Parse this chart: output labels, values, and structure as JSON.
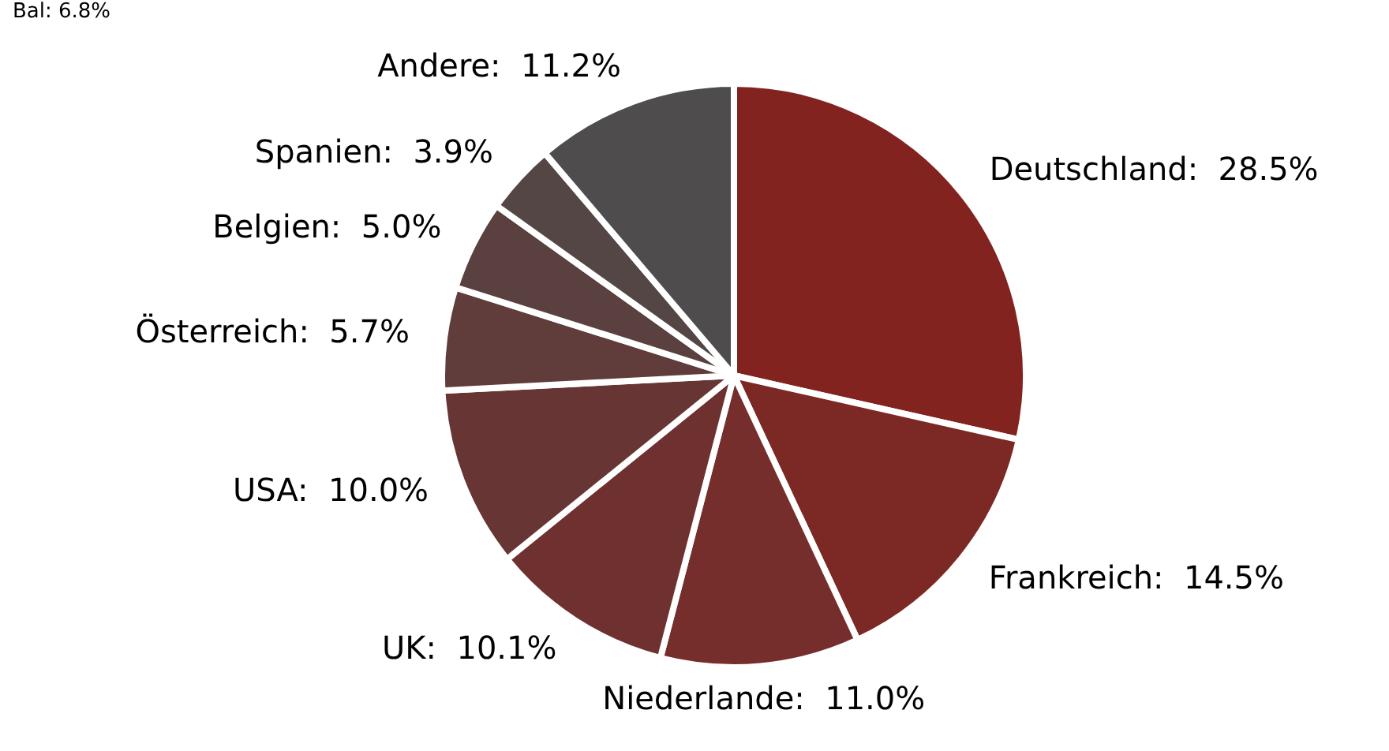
{
  "chart_data": {
    "type": "pie",
    "categories": [
      "Deutschland",
      "Frankreich",
      "Niederlande",
      "UK",
      "USA",
      "Österreich",
      "Belgien",
      "Spanien",
      "Andere"
    ],
    "values": [
      28.5,
      14.5,
      11.0,
      10.1,
      10.0,
      5.7,
      5.0,
      3.9,
      11.2
    ],
    "value_labels": [
      "28.5%",
      "14.5%",
      "11.0%",
      "10.1%",
      "10.0%",
      "5.7%",
      "5.0%",
      "3.9%",
      "11.2%"
    ],
    "colors": [
      "#82231f",
      "#7c2824",
      "#752e2c",
      "#6e3130",
      "#673634",
      "#603c3b",
      "#5a4140",
      "#554646",
      "#4e4c4d"
    ],
    "annotations": [
      "Bal: 6.8%"
    ],
    "legend": false
  }
}
